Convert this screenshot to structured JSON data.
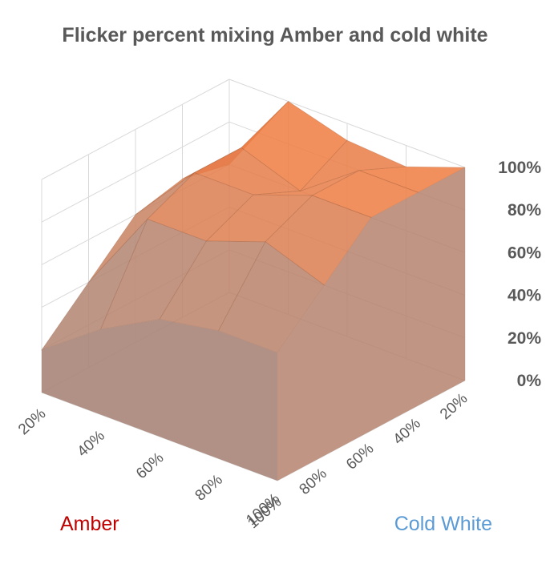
{
  "chart_data": {
    "type": "surface",
    "title": "Flicker percent mixing Amber and cold white",
    "x_axis": {
      "label": "Amber",
      "categories": [
        "20%",
        "40%",
        "60%",
        "80%",
        "100%"
      ]
    },
    "y_axis": {
      "label": "Cold White",
      "categories": [
        "20%",
        "40%",
        "60%",
        "80%",
        "100%"
      ]
    },
    "z_axis": {
      "ticks": [
        "0%",
        "20%",
        "40%",
        "60%",
        "80%",
        "100%"
      ],
      "range": [
        0,
        100
      ]
    },
    "z_values": [
      [
        60,
        100,
        92,
        90,
        100
      ],
      [
        65,
        90,
        80,
        100,
        100
      ],
      [
        60,
        90,
        90,
        100,
        100
      ],
      [
        40,
        80,
        80,
        90,
        80
      ],
      [
        20,
        40,
        55,
        60,
        60
      ]
    ],
    "colors": {
      "surface_top": "#f47b3d",
      "surface_side": "#a08d89",
      "axis_line": "#d9d9d9",
      "amber_label": "#c00000",
      "cold_white_label": "#5b9bd5"
    },
    "grid": true
  }
}
